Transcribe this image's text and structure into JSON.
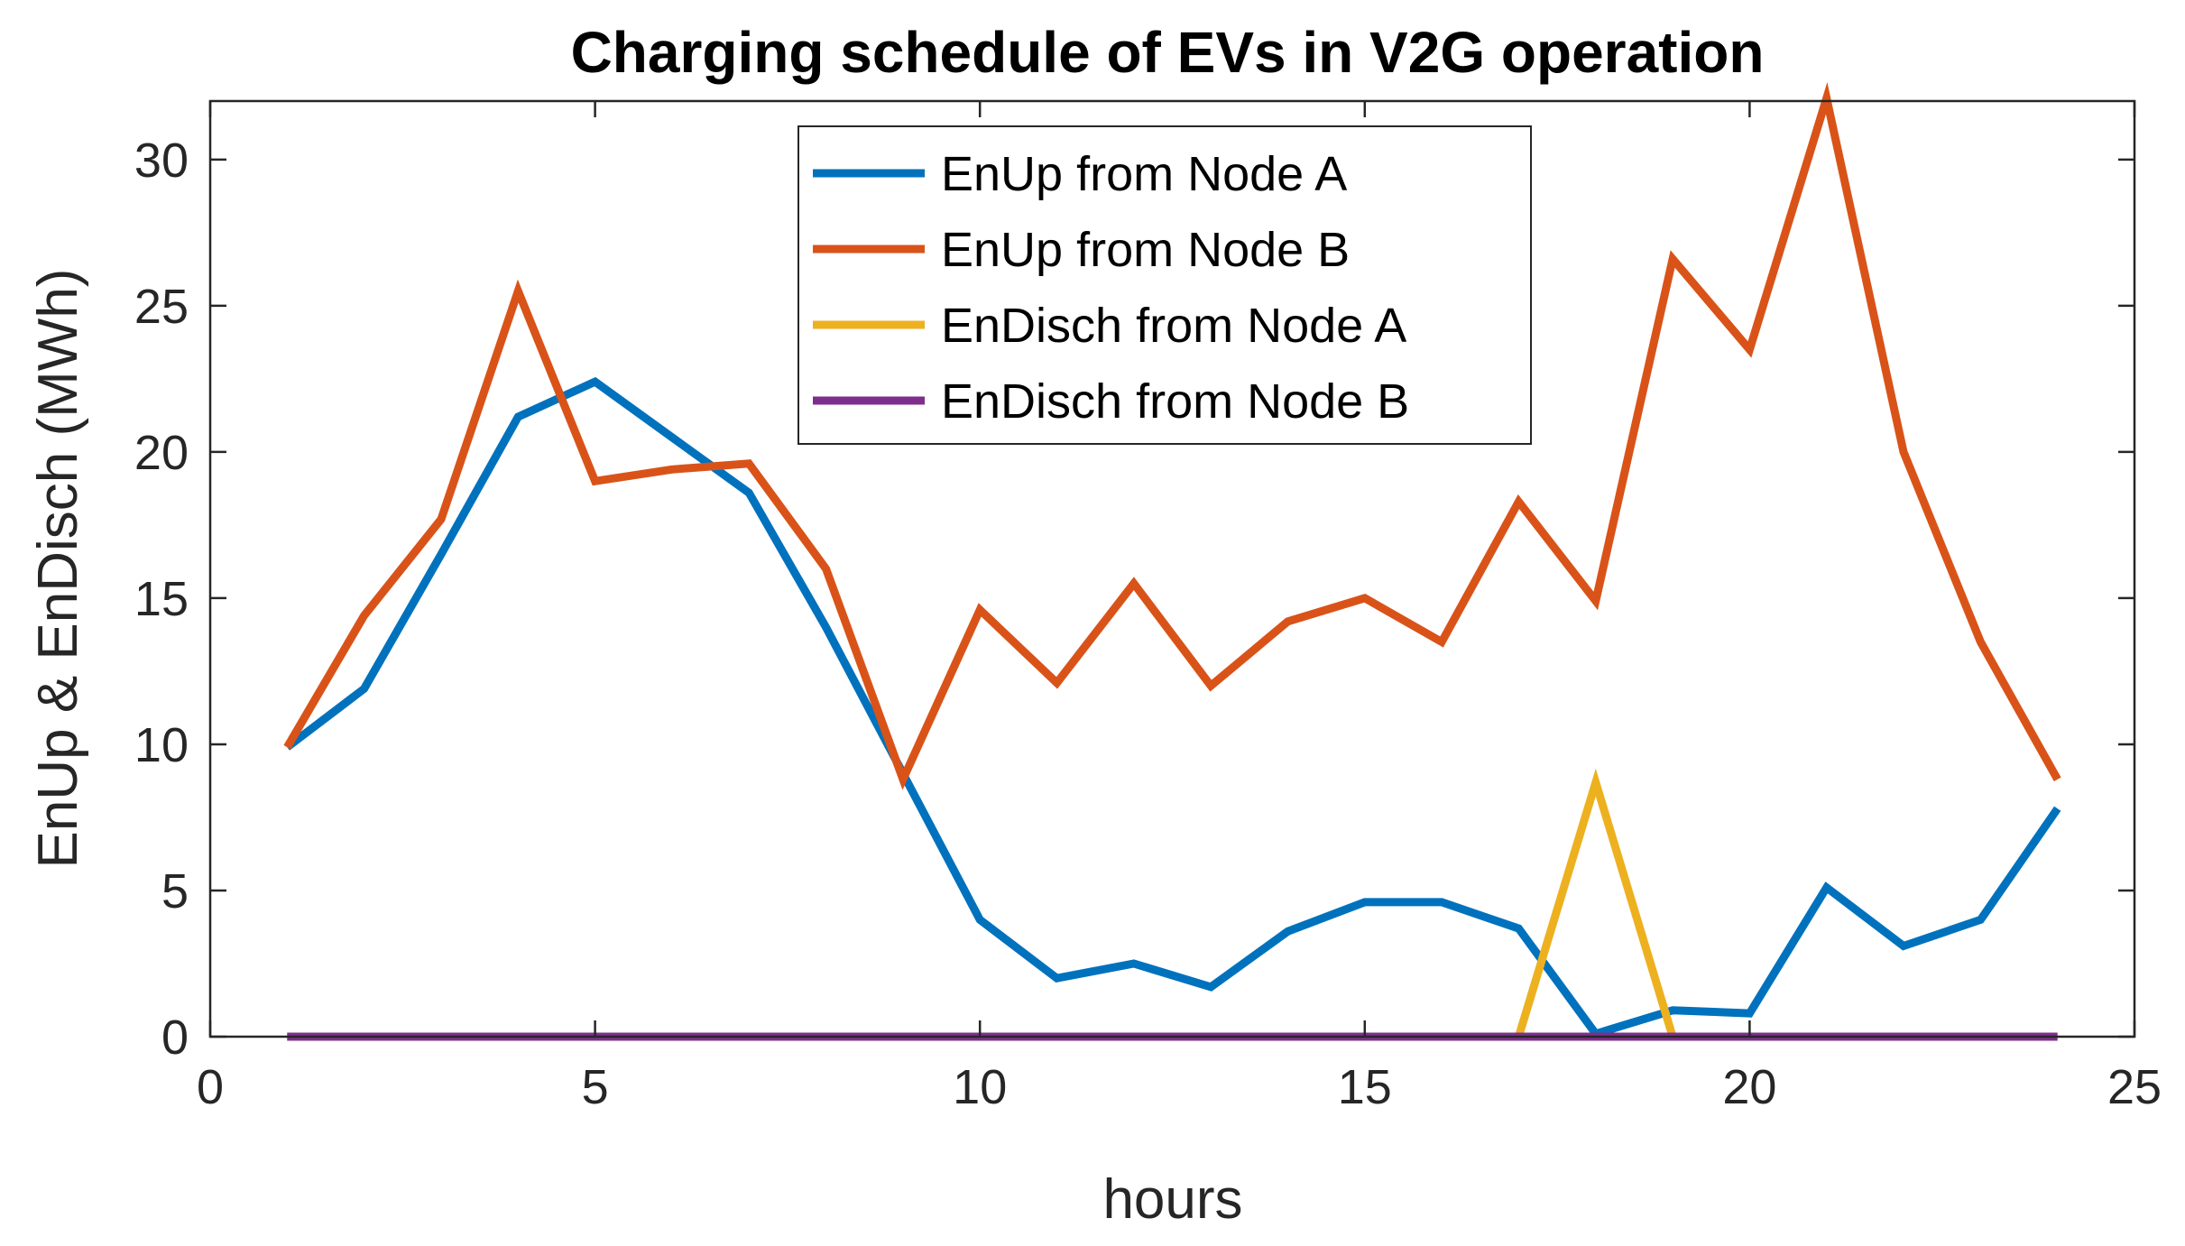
{
  "chart_data": {
    "type": "line",
    "title": "Charging schedule of EVs in V2G operation",
    "xlabel": "hours",
    "ylabel": "EnUp & EnDisch (MWh)",
    "xlim": [
      0,
      25
    ],
    "ylim": [
      0,
      32
    ],
    "xticks": [
      0,
      5,
      10,
      15,
      20,
      25
    ],
    "yticks": [
      0,
      5,
      10,
      15,
      20,
      25,
      30
    ],
    "grid": false,
    "legend_position": "top-center",
    "x": [
      1,
      2,
      3,
      4,
      5,
      6,
      7,
      8,
      9,
      10,
      11,
      12,
      13,
      14,
      15,
      16,
      17,
      18,
      19,
      20,
      21,
      22,
      23,
      24
    ],
    "series": [
      {
        "name": "EnUp from Node A",
        "color": "#0072BD",
        "values": [
          9.9,
          11.9,
          16.5,
          21.2,
          22.4,
          20.5,
          18.6,
          14.0,
          9.0,
          4.0,
          2.0,
          2.5,
          1.7,
          3.6,
          4.6,
          4.6,
          3.7,
          0.1,
          0.9,
          0.8,
          5.1,
          3.1,
          4.0,
          7.8
        ]
      },
      {
        "name": "EnUp from Node B",
        "color": "#D95319",
        "values": [
          9.9,
          14.4,
          17.7,
          25.5,
          19.0,
          19.4,
          19.6,
          16.0,
          8.8,
          14.6,
          12.1,
          15.5,
          12.0,
          14.2,
          15.0,
          13.5,
          18.3,
          14.9,
          26.6,
          23.5,
          32.1,
          20.0,
          13.5,
          8.8
        ]
      },
      {
        "name": "EnDisch from Node A",
        "color": "#EDB120",
        "values": [
          0,
          0,
          0,
          0,
          0,
          0,
          0,
          0,
          0,
          0,
          0,
          0,
          0,
          0,
          0,
          0,
          0,
          8.7,
          0,
          null,
          null,
          null,
          null,
          null
        ]
      },
      {
        "name": "EnDisch from Node B",
        "color": "#7E2F8E",
        "values": [
          0,
          0,
          0,
          0,
          0,
          0,
          0,
          0,
          0,
          0,
          0,
          0,
          0,
          0,
          0,
          0,
          0,
          0,
          0,
          0,
          0,
          0,
          0,
          0
        ]
      }
    ]
  }
}
